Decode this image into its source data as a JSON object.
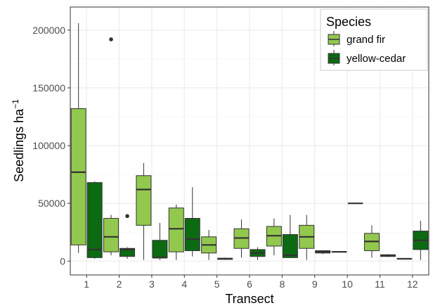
{
  "chart_data": {
    "type": "boxplot",
    "xlabel": "Transect",
    "ylabel_main": "Seedlings ha",
    "ylabel_sup": "−1",
    "ylim": [
      -12000,
      220000
    ],
    "yticks": [
      0,
      50000,
      100000,
      150000,
      200000
    ],
    "ytick_labels": [
      "0",
      "50000",
      "100000",
      "150000",
      "200000"
    ],
    "categories": [
      "1",
      "2",
      "3",
      "4",
      "5",
      "6",
      "8",
      "9",
      "10",
      "11",
      "12"
    ],
    "grid": true,
    "legend": {
      "title": "Species",
      "position": "top-right"
    },
    "series": [
      {
        "name": "grand fir",
        "color": "#92c84e",
        "boxes": [
          {
            "category": "1",
            "min": 7000,
            "q1": 14000,
            "median": 77000,
            "q3": 132000,
            "max": 206000,
            "outliers": []
          },
          {
            "category": "2",
            "min": 5000,
            "q1": 8000,
            "median": 21000,
            "q3": 37000,
            "max": 40000,
            "outliers": [
              192000
            ]
          },
          {
            "category": "3",
            "min": 1000,
            "q1": 31000,
            "median": 62000,
            "q3": 74000,
            "max": 85000,
            "outliers": []
          },
          {
            "category": "4",
            "min": 1000,
            "q1": 8000,
            "median": 28000,
            "q3": 46000,
            "max": 49000,
            "outliers": []
          },
          {
            "category": "5",
            "min": 1000,
            "q1": 7000,
            "median": 14000,
            "q3": 21000,
            "max": 27000,
            "outliers": []
          },
          {
            "category": "6",
            "min": 3000,
            "q1": 11000,
            "median": 20000,
            "q3": 28000,
            "max": 36000,
            "outliers": []
          },
          {
            "category": "8",
            "min": 5000,
            "q1": 13000,
            "median": 22000,
            "q3": 30000,
            "max": 37000,
            "outliers": []
          },
          {
            "category": "9",
            "min": 1000,
            "q1": 11000,
            "median": 21000,
            "q3": 31000,
            "max": 40000,
            "outliers": []
          },
          {
            "category": "10",
            "min": 8000,
            "q1": 8000,
            "median": 8000,
            "q3": 8000,
            "max": 8000,
            "outliers": []
          },
          {
            "category": "11",
            "min": 3000,
            "q1": 9000,
            "median": 17000,
            "q3": 24000,
            "max": 31000,
            "outliers": []
          },
          {
            "category": "12",
            "min": 2000,
            "q1": 2000,
            "median": 2000,
            "q3": 2000,
            "max": 2000,
            "outliers": []
          }
        ]
      },
      {
        "name": "yellow-cedar",
        "color": "#0c6a12",
        "boxes": [
          {
            "category": "1",
            "min": 2000,
            "q1": 3000,
            "median": 10000,
            "q3": 68000,
            "max": 69000,
            "outliers": []
          },
          {
            "category": "2",
            "min": 2000,
            "q1": 4000,
            "median": 10000,
            "q3": 11000,
            "max": 12000,
            "outliers": [
              39000
            ]
          },
          {
            "category": "3",
            "min": 1000,
            "q1": 3000,
            "median": 3000,
            "q3": 18000,
            "max": 33000,
            "outliers": []
          },
          {
            "category": "4",
            "min": 4000,
            "q1": 9000,
            "median": 19000,
            "q3": 37000,
            "max": 64000,
            "outliers": []
          },
          {
            "category": "5",
            "min": 1000,
            "q1": 1500,
            "median": 2000,
            "q3": 2500,
            "max": 3000,
            "outliers": []
          },
          {
            "category": "6",
            "min": 1000,
            "q1": 4000,
            "median": 7000,
            "q3": 10000,
            "max": 12000,
            "outliers": []
          },
          {
            "category": "8",
            "min": 3000,
            "q1": 3000,
            "median": 5000,
            "q3": 23000,
            "max": 40000,
            "outliers": []
          },
          {
            "category": "9",
            "min": 6000,
            "q1": 7000,
            "median": 8000,
            "q3": 9000,
            "max": 9000,
            "outliers": []
          },
          {
            "category": "10",
            "min": 50000,
            "q1": 50000,
            "median": 50000,
            "q3": 50000,
            "max": 50000,
            "outliers": []
          },
          {
            "category": "11",
            "min": 3500,
            "q1": 4000,
            "median": 5000,
            "q3": 5500,
            "max": 6000,
            "outliers": []
          },
          {
            "category": "12",
            "min": 1000,
            "q1": 10000,
            "median": 18000,
            "q3": 26000,
            "max": 35000,
            "outliers": []
          }
        ]
      }
    ]
  }
}
